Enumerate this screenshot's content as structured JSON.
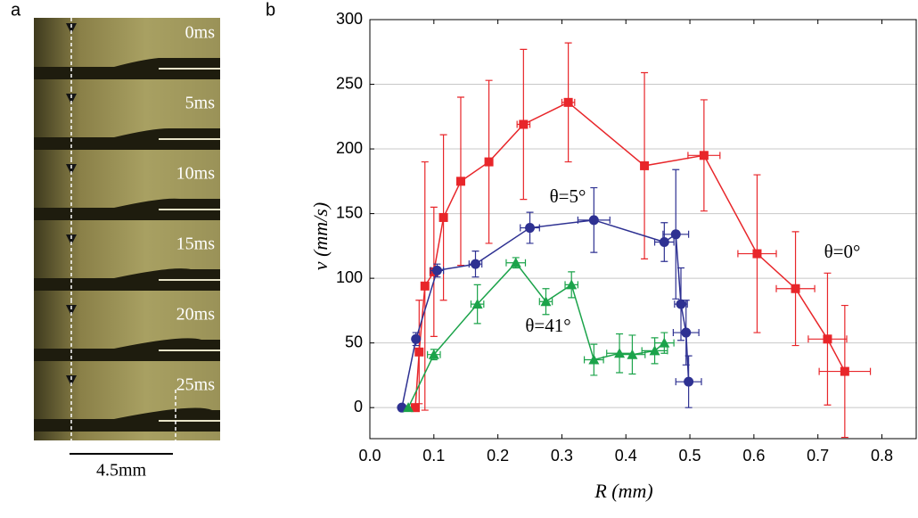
{
  "panel_a": {
    "label": "a",
    "frames": [
      "0ms",
      "5ms",
      "10ms",
      "15ms",
      "20ms",
      "25ms"
    ],
    "scale_bar": "4.5mm"
  },
  "chart_data": {
    "type": "line",
    "panel_label": "b",
    "x_label": "R  (mm)",
    "y_label": "v  (mm/s)",
    "xlim": [
      0,
      0.855
    ],
    "ylim": [
      -24,
      300
    ],
    "xticks": [
      {
        "value": 0,
        "label": "0.0"
      },
      0.1,
      0.2,
      0.3,
      0.4,
      0.5,
      0.6,
      0.7,
      0.8
    ],
    "yticks": [
      0,
      50,
      100,
      150,
      200,
      250,
      300
    ],
    "grid": true,
    "series": [
      {
        "name": "θ=0°",
        "color": "#e8262a",
        "marker": "square",
        "x": [
          0.071,
          0.077,
          0.086,
          0.1,
          0.115,
          0.142,
          0.186,
          0.24,
          0.31,
          0.429,
          0.522,
          0.605,
          0.665,
          0.715,
          0.742
        ],
        "values": [
          0,
          43,
          94,
          105,
          147,
          175,
          190,
          219,
          236,
          187,
          195,
          119,
          92,
          53,
          28
        ],
        "yerr": [
          0,
          40,
          96,
          50,
          64,
          65,
          63,
          58,
          46,
          72,
          43,
          61,
          44,
          51,
          51
        ],
        "xerr": [
          0,
          0,
          0,
          0,
          0,
          0,
          0,
          0.01,
          0.01,
          0,
          0.025,
          0.03,
          0.03,
          0.03,
          0.04
        ]
      },
      {
        "name": "θ=5°",
        "color": "#2e3192",
        "marker": "circle",
        "x": [
          0.05,
          0.072,
          0.105,
          0.165,
          0.25,
          0.35,
          0.46,
          0.478,
          0.486,
          0.494,
          0.498
        ],
        "values": [
          0,
          53,
          106,
          111,
          139,
          145,
          128,
          134,
          80,
          58,
          20
        ],
        "yerr": [
          0,
          5,
          5,
          10,
          12,
          25,
          15,
          50,
          28,
          25,
          20
        ],
        "xerr": [
          0,
          0,
          0.01,
          0.01,
          0.015,
          0.025,
          0.015,
          0.02,
          0.01,
          0.02,
          0.02
        ]
      },
      {
        "name": "θ=41°",
        "color": "#1ba34a",
        "marker": "triangle",
        "x": [
          0.06,
          0.1,
          0.168,
          0.228,
          0.275,
          0.315,
          0.35,
          0.39,
          0.41,
          0.445,
          0.46
        ],
        "values": [
          0,
          41,
          80,
          112,
          82,
          95,
          37,
          42,
          41,
          44,
          50
        ],
        "yerr": [
          0,
          4,
          15,
          4,
          10,
          10,
          12,
          15,
          15,
          10,
          8
        ],
        "xerr": [
          0,
          0.01,
          0.01,
          0.015,
          0.01,
          0.01,
          0.015,
          0.02,
          0.02,
          0.02,
          0.015
        ]
      }
    ]
  }
}
